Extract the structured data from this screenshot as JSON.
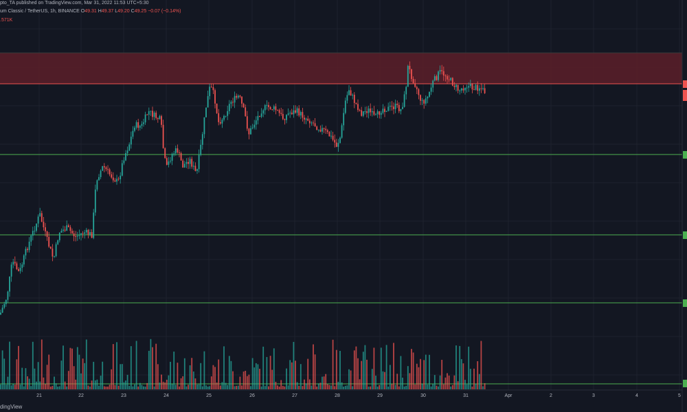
{
  "header": {
    "publish_line": "pto_TA published on TradingView.com, Mar 31, 2022 11:53 UTC+5:30",
    "symbol": "um Classic / TetherUS, 1h, BINANCE",
    "ohlc": [
      {
        "label": "O",
        "value": "49.31"
      },
      {
        "label": "H",
        "value": "49.37"
      },
      {
        "label": "L",
        "value": "49.20"
      },
      {
        "label": "C",
        "value": "49.25"
      }
    ],
    "change": "−0.07 (−0.14%)",
    "volume": ".571K"
  },
  "footer": {
    "brand": "dingView"
  },
  "colors": {
    "background": "#131722",
    "grid": "#1e222d",
    "bull": "#26a69a",
    "bear": "#ef5350",
    "zone_fill": "#5c1e29",
    "zone_border": "#ef5350",
    "support": "#4caf50",
    "axis_text": "#b2b5be"
  },
  "chart_data": {
    "type": "candlestick",
    "interval": "1h",
    "x_ticks": [
      "21",
      "22",
      "23",
      "24",
      "25",
      "26",
      "27",
      "28",
      "29",
      "30",
      "31",
      "Apr",
      "2",
      "3",
      "4",
      "5"
    ],
    "resistance_zone": {
      "color": "red",
      "note": "shaded band above highs"
    },
    "support_lines": 4,
    "candles_approx": 257,
    "legend": "none",
    "grid": true
  }
}
